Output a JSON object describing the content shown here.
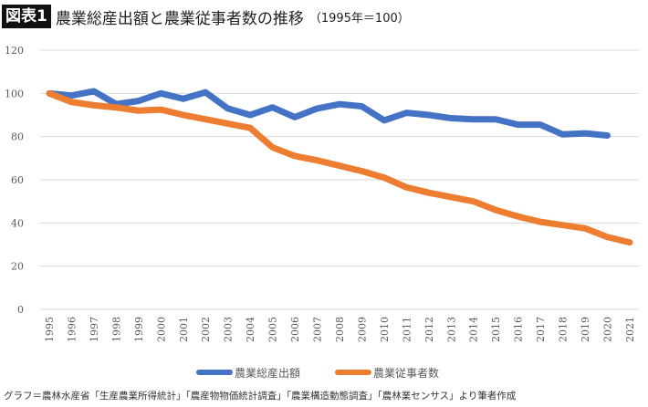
{
  "header": {
    "badge": "図表1",
    "title": "農業総産出額と農業従事者数の推移",
    "subtitle": "（1995年＝100）"
  },
  "source": "グラフ＝農林水産省「生産農業所得統計」「農産物物価統計調査」「農業構造動態調査」「農林業センサス」より筆者作成",
  "chart_data": {
    "type": "line",
    "title": "農業総産出額と農業従事者数の推移",
    "xlabel": "",
    "ylabel": "",
    "ylim": [
      0,
      120
    ],
    "yticks": [
      "0",
      "20",
      "40",
      "60",
      "80",
      "100",
      "120"
    ],
    "x": [
      "1995",
      "1996",
      "1997",
      "1998",
      "1999",
      "2000",
      "2001",
      "2002",
      "2003",
      "2004",
      "2005",
      "2006",
      "2007",
      "2008",
      "2009",
      "2010",
      "2011",
      "2012",
      "2013",
      "2014",
      "2015",
      "2016",
      "2017",
      "2018",
      "2019",
      "2020",
      "2021"
    ],
    "grid": true,
    "legend": "bottom",
    "series": [
      {
        "name": "農業総産出額",
        "color": "#4472C4",
        "values": [
          100,
          99,
          101,
          95,
          96.5,
          100,
          97.5,
          100.5,
          93,
          90,
          93.5,
          89,
          93,
          95,
          94,
          87.5,
          91,
          90,
          88.5,
          88,
          88,
          85.5,
          85.5,
          81,
          81.5,
          80.5,
          null
        ]
      },
      {
        "name": "農業従事者数",
        "color": "#ED7D31",
        "values": [
          100,
          96,
          94.5,
          93.5,
          92,
          92.5,
          90,
          88,
          86,
          84,
          75,
          71,
          69,
          66.5,
          64,
          61,
          56.5,
          54,
          52,
          50,
          46,
          43,
          40.5,
          39,
          37.5,
          33.5,
          31
        ]
      }
    ]
  }
}
